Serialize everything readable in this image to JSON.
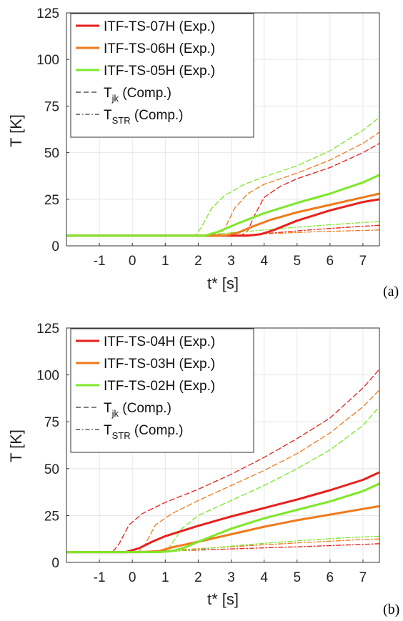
{
  "chart_data": [
    {
      "type": "line",
      "panel_label": "(a)",
      "xlabel": "t* [s]",
      "ylabel": "T [K]",
      "xlim": [
        -2,
        7.5
      ],
      "ylim": [
        0,
        125
      ],
      "xticks": [
        "-1",
        "0",
        "1",
        "2",
        "3",
        "4",
        "5",
        "6",
        "7"
      ],
      "yticks": [
        "0",
        "25",
        "50",
        "75",
        "100",
        "125"
      ],
      "grid": true,
      "legend_position": "top-left",
      "legend": [
        {
          "label": "ITF-TS-07H (Exp.)",
          "style": "solid",
          "color": "#e8201c"
        },
        {
          "label": "ITF-TS-06H (Exp.)",
          "style": "solid",
          "color": "#f07a1a"
        },
        {
          "label": "ITF-TS-05H (Exp.)",
          "style": "solid",
          "color": "#7ee82a"
        },
        {
          "label": "T",
          "sub": "jk",
          "suffix": " (Comp.)",
          "style": "dashed",
          "color": "#333333"
        },
        {
          "label": "T",
          "sub": "STR",
          "suffix": " (Comp.)",
          "style": "dashdot",
          "color": "#333333"
        }
      ],
      "series": [
        {
          "color": "#e8201c",
          "style": "solid",
          "x": [
            -2,
            3.5,
            3.9,
            4.3,
            5,
            6,
            7,
            7.5
          ],
          "y": [
            5.5,
            5.5,
            6.2,
            8.5,
            13.5,
            19,
            23.5,
            25
          ]
        },
        {
          "color": "#f07a1a",
          "style": "solid",
          "x": [
            -2,
            2.8,
            3.2,
            3.6,
            4.2,
            5,
            6,
            7,
            7.5
          ],
          "y": [
            5.5,
            5.5,
            7,
            10,
            14,
            18,
            22,
            26,
            28
          ]
        },
        {
          "color": "#7ee82a",
          "style": "solid",
          "x": [
            -2,
            2.2,
            2.6,
            3.2,
            4,
            5,
            6,
            7,
            7.5
          ],
          "y": [
            5.5,
            5.5,
            7.5,
            12,
            17.5,
            23,
            28,
            34,
            38
          ]
        },
        {
          "color": "#e8201c",
          "style": "dashed",
          "x": [
            -2,
            3.3,
            3.5,
            3.7,
            4,
            4.5,
            5,
            6,
            7,
            7.5
          ],
          "y": [
            5.5,
            5.5,
            8,
            16,
            26,
            32,
            36,
            42,
            50,
            55
          ]
        },
        {
          "color": "#f07a1a",
          "style": "dashed",
          "x": [
            -2,
            2.6,
            2.8,
            3.1,
            3.5,
            4,
            5,
            6,
            7,
            7.5
          ],
          "y": [
            5.5,
            5.5,
            9,
            20,
            28,
            33,
            39,
            46,
            55,
            61
          ]
        },
        {
          "color": "#7ee82a",
          "style": "dashed",
          "x": [
            -2,
            1.9,
            2.1,
            2.4,
            2.8,
            3.4,
            4,
            5,
            6,
            7,
            7.5
          ],
          "y": [
            5.5,
            5.5,
            10,
            20,
            27,
            33,
            37,
            43,
            51,
            62,
            69
          ]
        },
        {
          "color": "#e8201c",
          "style": "dashdot",
          "x": [
            -2,
            3.3,
            4,
            5,
            6,
            7,
            7.5
          ],
          "y": [
            5.5,
            5.5,
            6.5,
            8,
            9.3,
            10.5,
            11
          ]
        },
        {
          "color": "#f07a1a",
          "style": "dashdot",
          "x": [
            -2,
            2.6,
            3.5,
            4.5,
            5.5,
            6.5,
            7.5
          ],
          "y": [
            5.5,
            5.5,
            6,
            6.8,
            7.5,
            8,
            8.5
          ]
        },
        {
          "color": "#7ee82a",
          "style": "dashdot",
          "x": [
            -2,
            1.9,
            3,
            4,
            5,
            6,
            7,
            7.5
          ],
          "y": [
            5.5,
            5.5,
            7,
            8.5,
            10,
            11.3,
            12.5,
            13
          ]
        }
      ]
    },
    {
      "type": "line",
      "panel_label": "(b)",
      "xlabel": "t* [s]",
      "ylabel": "T [K]",
      "xlim": [
        -2,
        7.5
      ],
      "ylim": [
        0,
        125
      ],
      "xticks": [
        "-1",
        "0",
        "1",
        "2",
        "3",
        "4",
        "5",
        "6",
        "7"
      ],
      "yticks": [
        "0",
        "25",
        "50",
        "75",
        "100",
        "125"
      ],
      "grid": true,
      "legend_position": "top-left",
      "legend": [
        {
          "label": "ITF-TS-04H (Exp.)",
          "style": "solid",
          "color": "#e8201c"
        },
        {
          "label": "ITF-TS-03H (Exp.)",
          "style": "solid",
          "color": "#f07a1a"
        },
        {
          "label": "ITF-TS-02H (Exp.)",
          "style": "solid",
          "color": "#7ee82a"
        },
        {
          "label": "T",
          "sub": "jk",
          "suffix": " (Comp.)",
          "style": "dashed",
          "color": "#333333"
        },
        {
          "label": "T",
          "sub": "STR",
          "suffix": " (Comp.)",
          "style": "dashdot",
          "color": "#333333"
        }
      ],
      "series": [
        {
          "color": "#e8201c",
          "style": "solid",
          "x": [
            -2,
            -0.2,
            0.2,
            0.6,
            1,
            2,
            3,
            4,
            5,
            6,
            7,
            7.5
          ],
          "y": [
            5.5,
            5.5,
            7.5,
            11,
            14,
            19.5,
            24.5,
            29,
            33.5,
            38.5,
            44,
            48
          ]
        },
        {
          "color": "#f07a1a",
          "style": "solid",
          "x": [
            -2,
            0.2,
            0.8,
            1.2,
            2,
            3,
            4,
            5,
            6,
            7,
            7.5
          ],
          "y": [
            5.5,
            5.5,
            6,
            8,
            11,
            15,
            19,
            22.5,
            25.5,
            28.5,
            30
          ]
        },
        {
          "color": "#7ee82a",
          "style": "solid",
          "x": [
            -2,
            0.8,
            1.2,
            1.6,
            2,
            3,
            4,
            5,
            6,
            7,
            7.5
          ],
          "y": [
            5.5,
            5.5,
            6,
            8,
            11,
            18,
            23.5,
            28,
            32.5,
            38,
            42
          ]
        },
        {
          "color": "#e8201c",
          "style": "dashed",
          "x": [
            -2,
            -0.6,
            -0.4,
            -0.1,
            0.3,
            1,
            2,
            3,
            4,
            5,
            6,
            7,
            7.5
          ],
          "y": [
            5.5,
            5.5,
            10,
            20,
            26,
            32,
            39,
            47,
            56,
            66,
            77,
            93,
            103
          ]
        },
        {
          "color": "#f07a1a",
          "style": "dashed",
          "x": [
            -2,
            0.2,
            0.4,
            0.7,
            1.2,
            2,
            3,
            4,
            5,
            6,
            7,
            7.5
          ],
          "y": [
            5.5,
            5.5,
            10,
            20,
            26,
            33,
            41,
            49,
            58,
            69,
            83,
            92
          ]
        },
        {
          "color": "#7ee82a",
          "style": "dashed",
          "x": [
            -2,
            1.0,
            1.2,
            1.5,
            2,
            3,
            4,
            5,
            6,
            7,
            7.5
          ],
          "y": [
            5.5,
            5.5,
            10,
            18,
            25,
            33,
            41,
            50,
            60,
            73,
            83
          ]
        },
        {
          "color": "#e8201c",
          "style": "dashdot",
          "x": [
            -2,
            -0.6,
            1,
            3,
            5,
            7,
            7.5
          ],
          "y": [
            5.5,
            5.5,
            6,
            7.2,
            8.3,
            9.6,
            10
          ]
        },
        {
          "color": "#f07a1a",
          "style": "dashdot",
          "x": [
            -2,
            0.2,
            1.5,
            3,
            5,
            7,
            7.5
          ],
          "y": [
            5.5,
            5.5,
            6.8,
            8.4,
            10.4,
            12.2,
            12.5
          ]
        },
        {
          "color": "#7ee82a",
          "style": "dashdot",
          "x": [
            -2,
            1.0,
            2,
            3.5,
            5,
            6.5,
            7.5
          ],
          "y": [
            5.5,
            5.5,
            7,
            9.5,
            11.5,
            13.2,
            14
          ]
        }
      ]
    }
  ]
}
